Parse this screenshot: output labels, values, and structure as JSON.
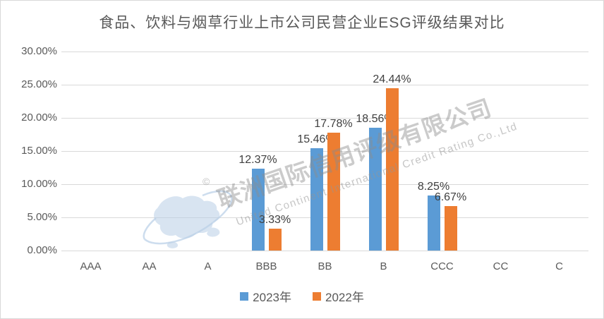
{
  "title": "食品、饮料与烟草行业上市公司民营企业ESG评级结果对比",
  "chart_data": {
    "type": "bar",
    "title": "食品、饮料与烟草行业上市公司民营企业ESG评级结果对比",
    "categories": [
      "AAA",
      "AA",
      "A",
      "BBB",
      "BB",
      "B",
      "CCC",
      "CC",
      "C"
    ],
    "series": [
      {
        "name": "2023年",
        "color": "#5B9BD5",
        "values": [
          0,
          0,
          0,
          12.37,
          15.46,
          18.56,
          8.25,
          0,
          0
        ],
        "labels": [
          "",
          "",
          "",
          "12.37%",
          "15.46%",
          "18.56%",
          "8.25%",
          "",
          ""
        ]
      },
      {
        "name": "2022年",
        "color": "#ED7D31",
        "values": [
          0,
          0,
          0,
          3.33,
          17.78,
          24.44,
          6.67,
          0,
          0
        ],
        "labels": [
          "",
          "",
          "",
          "3.33%",
          "17.78%",
          "24.44%",
          "6.67%",
          "",
          ""
        ]
      }
    ],
    "y_axis": {
      "max": 30,
      "ticks": [
        {
          "value": 0,
          "label": "0.00%"
        },
        {
          "value": 5,
          "label": "5.00%"
        },
        {
          "value": 10,
          "label": "10.00%"
        },
        {
          "value": 15,
          "label": "15.00%"
        },
        {
          "value": 20,
          "label": "20.00%"
        },
        {
          "value": 25,
          "label": "25.00%"
        },
        {
          "value": 30,
          "label": "30.00%"
        }
      ]
    },
    "grid": true,
    "legend_position": "bottom"
  },
  "watermark": {
    "copyright": "©",
    "cn": "联洲国际信用评级有限公司",
    "en": "United Continent International Credit Rating Co.,Ltd"
  },
  "colors": {
    "title_text": "#595959",
    "axis_text": "#595959",
    "label_text": "#404040",
    "gridline": "#D9D9D9",
    "border": "#D9D9D9",
    "series_2023": "#5B9BD5",
    "series_2022": "#ED7D31",
    "watermark_text": "#8C8C8C",
    "globe": "#B9CFE7"
  }
}
